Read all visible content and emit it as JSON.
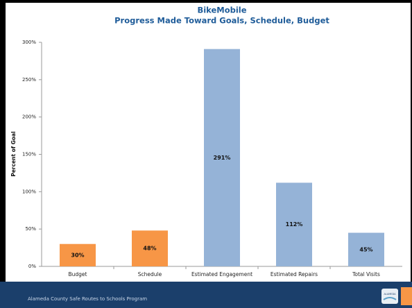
{
  "chart_data": {
    "type": "bar",
    "title": "BikeMobile",
    "subtitle": "Progress Made Toward Goals, Schedule, Budget",
    "ylabel": "Percent of Goal",
    "categories": [
      "Budget",
      "Schedule",
      "Estimated Engagement",
      "Estimated Repairs",
      "Total Visits"
    ],
    "values": [
      30,
      48,
      291,
      112,
      45
    ],
    "value_labels": [
      "30%",
      "48%",
      "291%",
      "112%",
      "45%"
    ],
    "colors": [
      "#f79646",
      "#f79646",
      "#95b3d7",
      "#95b3d7",
      "#95b3d7"
    ],
    "ylim": [
      0,
      300
    ],
    "yticks": [
      {
        "value": 0,
        "label": "0%"
      },
      {
        "value": 50,
        "label": "50%"
      },
      {
        "value": 100,
        "label": "100%"
      },
      {
        "value": 150,
        "label": "150%"
      },
      {
        "value": 200,
        "label": "200%"
      },
      {
        "value": 250,
        "label": "250%"
      },
      {
        "value": 300,
        "label": "300%"
      }
    ],
    "grid": false
  },
  "footer": {
    "text": "Alameda County Safe Routes to Schools Program",
    "logo": "ALAMEDA"
  }
}
